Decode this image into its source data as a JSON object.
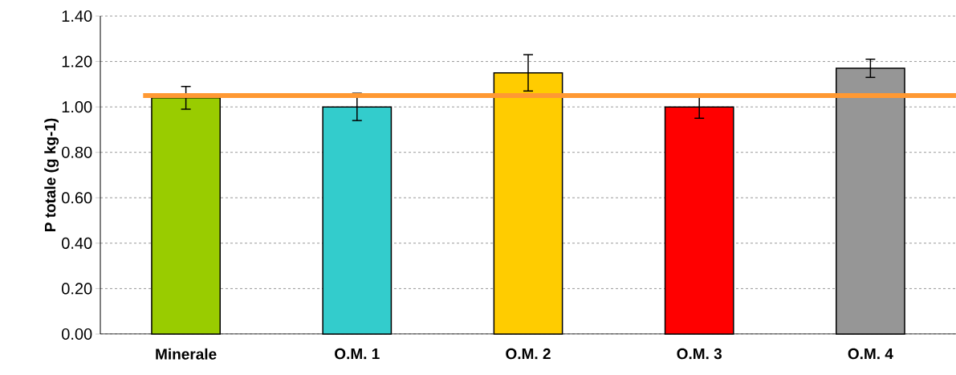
{
  "chart_data": {
    "type": "bar",
    "ylabel": "P totale (g kg-1)",
    "categories": [
      "Minerale",
      "O.M. 1",
      "O.M. 2",
      "O.M. 3",
      "O.M. 4"
    ],
    "values": [
      1.04,
      1.0,
      1.15,
      1.0,
      1.17
    ],
    "errors": [
      0.05,
      0.06,
      0.08,
      0.05,
      0.04
    ],
    "colors": [
      "#99cc00",
      "#33cccc",
      "#ffcc00",
      "#ff0000",
      "#969696"
    ],
    "ylim": [
      0,
      1.4
    ],
    "yticks": [
      {
        "value": 0,
        "label": "0.00"
      },
      {
        "value": 0.2,
        "label": "0.20"
      },
      {
        "value": 0.4,
        "label": "0.40"
      },
      {
        "value": 0.6,
        "label": "0.60"
      },
      {
        "value": 0.8,
        "label": "0.80"
      },
      {
        "value": 1.0,
        "label": "1.00"
      },
      {
        "value": 1.2,
        "label": "1.20"
      },
      {
        "value": 1.4,
        "label": "1.40"
      }
    ],
    "ref_lines": [
      {
        "axis": "y",
        "value": 1.05,
        "color": "#ff9933"
      }
    ],
    "grid": "y"
  }
}
